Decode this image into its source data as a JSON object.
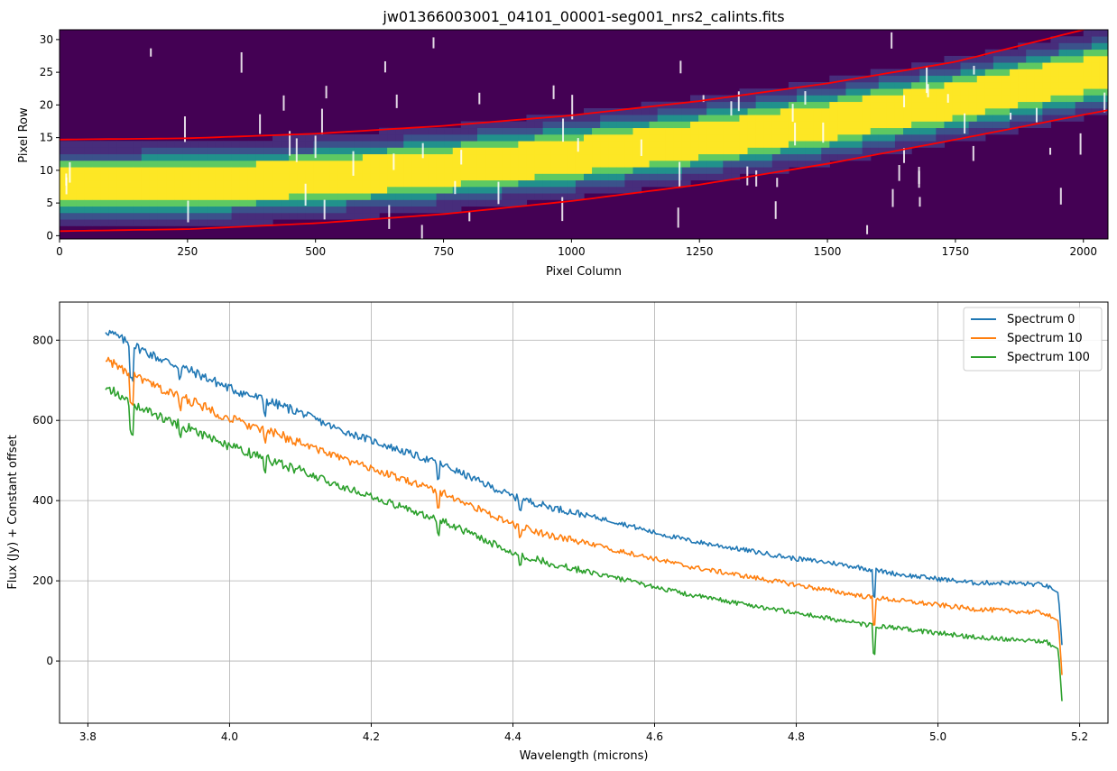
{
  "chart_data": [
    {
      "type": "heatmap",
      "title": "jw01366003001_04101_00001-seg001_nrs2_calints.fits",
      "xlabel": "Pixel Column",
      "ylabel": "Pixel Row",
      "xlim": [
        0,
        2048
      ],
      "ylim": [
        -0.5,
        31.5
      ],
      "xticks": [
        0,
        250,
        500,
        750,
        1000,
        1250,
        1500,
        1750,
        2000
      ],
      "yticks": [
        0,
        5,
        10,
        15,
        20,
        25,
        30
      ],
      "colormap": [
        "#440154",
        "#472d7b",
        "#3b528b",
        "#2c728e",
        "#21918c",
        "#28ae80",
        "#5ec962",
        "#addc30",
        "#fde725"
      ],
      "trace_center_x": [
        0,
        250,
        500,
        750,
        1000,
        1250,
        1500,
        1750,
        2000,
        2048
      ],
      "trace_center_y": [
        7.6,
        7.9,
        8.8,
        10.3,
        12.2,
        14.6,
        17.4,
        20.7,
        24.5,
        25.2
      ],
      "trace_halfwidth_bright": 2.6,
      "trace_halfwidth_total": 6.5,
      "aperture_lines": {
        "color": "#ff0000",
        "upper_x": [
          0,
          250,
          500,
          750,
          1000,
          1250,
          1500,
          1750,
          2000,
          2048
        ],
        "upper_y": [
          14.7,
          14.9,
          15.6,
          16.8,
          18.4,
          20.6,
          23.3,
          26.6,
          31.5,
          32.9
        ],
        "lower_x": [
          0,
          250,
          500,
          750,
          1000,
          1250,
          1500,
          1750,
          2000,
          2048
        ],
        "lower_y": [
          0.7,
          1.0,
          1.9,
          3.3,
          5.3,
          7.8,
          11.0,
          14.7,
          18.5,
          19.2
        ]
      }
    },
    {
      "type": "line",
      "title": "",
      "xlabel": "Wavelength (microns)",
      "ylabel": "Flux (Jy) + Constant offset",
      "xlim": [
        3.76,
        5.24
      ],
      "ylim": [
        -155,
        895
      ],
      "xticks": [
        "3.8",
        "4.0",
        "4.2",
        "4.4",
        "4.6",
        "4.8",
        "5.0",
        "5.2"
      ],
      "yticks": [
        "0",
        "200",
        "400",
        "600",
        "800"
      ],
      "grid": true,
      "legend_position": "top-right",
      "x": [
        3.825,
        3.85,
        3.9,
        3.95,
        4.0,
        4.05,
        4.1,
        4.15,
        4.2,
        4.25,
        4.3,
        4.35,
        4.4,
        4.45,
        4.5,
        4.55,
        4.6,
        4.65,
        4.7,
        4.75,
        4.8,
        4.85,
        4.9,
        4.95,
        5.0,
        5.05,
        5.1,
        5.15,
        5.16,
        5.17,
        5.175
      ],
      "series": [
        {
          "name": "Spectrum 0",
          "color": "#1f77b4",
          "values": [
            825,
            800,
            755,
            720,
            680,
            650,
            620,
            580,
            550,
            520,
            490,
            450,
            410,
            385,
            365,
            345,
            320,
            300,
            285,
            270,
            255,
            245,
            230,
            215,
            205,
            195,
            195,
            190,
            180,
            170,
            40
          ]
        },
        {
          "name": "Spectrum 10",
          "color": "#ff7f0e",
          "values": [
            755,
            725,
            680,
            645,
            605,
            575,
            545,
            510,
            480,
            450,
            420,
            380,
            340,
            315,
            295,
            275,
            255,
            235,
            220,
            205,
            190,
            175,
            160,
            150,
            140,
            130,
            125,
            120,
            110,
            100,
            -35
          ]
        },
        {
          "name": "Spectrum 100",
          "color": "#2ca02c",
          "values": [
            685,
            655,
            610,
            575,
            535,
            505,
            475,
            440,
            410,
            380,
            350,
            310,
            270,
            245,
            225,
            205,
            185,
            165,
            150,
            135,
            120,
            105,
            90,
            80,
            70,
            60,
            55,
            50,
            40,
            30,
            -100
          ]
        }
      ]
    }
  ]
}
